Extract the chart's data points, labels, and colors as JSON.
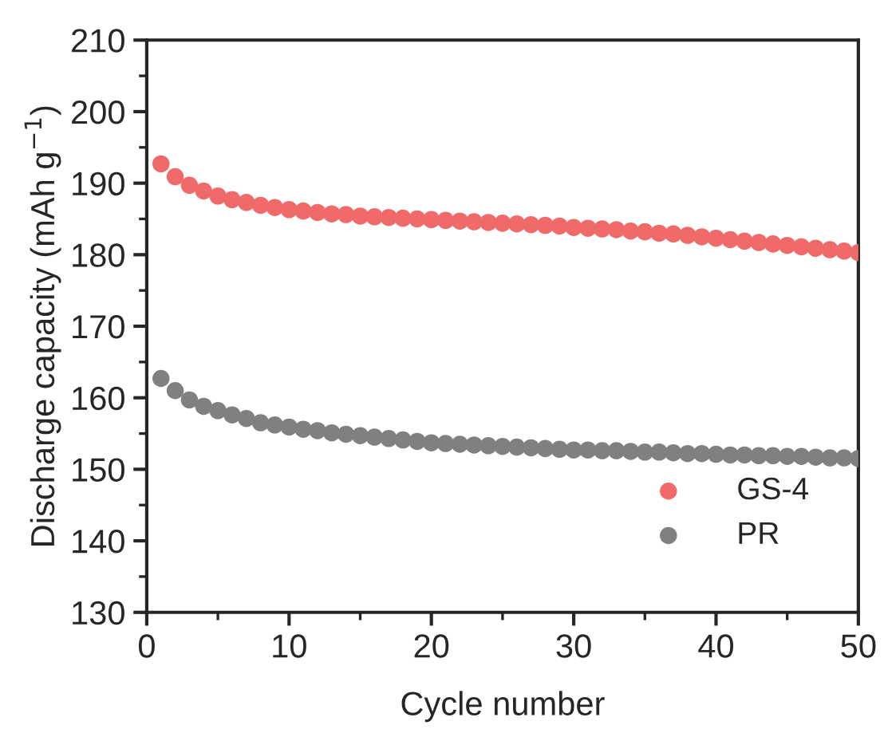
{
  "chart_data": {
    "type": "scatter",
    "xlabel": "Cycle number",
    "ylabel": "Discharge capacity (mAh g$^{−1}$)",
    "x": [
      1,
      2,
      3,
      4,
      5,
      6,
      7,
      8,
      9,
      10,
      11,
      12,
      13,
      14,
      15,
      16,
      17,
      18,
      19,
      20,
      21,
      22,
      23,
      24,
      25,
      26,
      27,
      28,
      29,
      30,
      31,
      32,
      33,
      34,
      35,
      36,
      37,
      38,
      39,
      40,
      41,
      42,
      43,
      44,
      45,
      46,
      47,
      48,
      49,
      50
    ],
    "series": [
      {
        "name": "GS-4",
        "color": "#f06a6a",
        "values": [
          192.7,
          190.9,
          189.7,
          188.9,
          188.2,
          187.7,
          187.3,
          186.9,
          186.6,
          186.3,
          186.1,
          185.9,
          185.7,
          185.6,
          185.4,
          185.3,
          185.2,
          185.1,
          185.0,
          184.9,
          184.8,
          184.7,
          184.6,
          184.5,
          184.4,
          184.3,
          184.2,
          184.1,
          184.0,
          183.8,
          183.7,
          183.6,
          183.5,
          183.3,
          183.2,
          183.0,
          182.9,
          182.7,
          182.5,
          182.3,
          182.1,
          181.9,
          181.7,
          181.5,
          181.3,
          181.1,
          180.9,
          180.7,
          180.5,
          180.3
        ]
      },
      {
        "name": "PR",
        "color": "#808080",
        "values": [
          162.7,
          161.0,
          159.7,
          158.8,
          158.2,
          157.6,
          157.1,
          156.5,
          156.2,
          155.9,
          155.6,
          155.4,
          155.1,
          154.9,
          154.7,
          154.5,
          154.3,
          154.1,
          153.9,
          153.7,
          153.6,
          153.5,
          153.4,
          153.3,
          153.2,
          153.1,
          153.0,
          152.9,
          152.8,
          152.7,
          152.7,
          152.6,
          152.6,
          152.5,
          152.4,
          152.4,
          152.3,
          152.2,
          152.2,
          152.1,
          152.0,
          152.0,
          151.9,
          151.9,
          151.8,
          151.8,
          151.7,
          151.6,
          151.6,
          151.5
        ]
      }
    ],
    "xlim": [
      0,
      50
    ],
    "xticks": [
      0,
      10,
      20,
      30,
      40,
      50
    ],
    "ylim": [
      130,
      210
    ],
    "yticks": [
      130,
      140,
      150,
      160,
      170,
      180,
      190,
      200,
      210
    ],
    "marker": "circle",
    "legend": "bottom right",
    "grid": false
  }
}
